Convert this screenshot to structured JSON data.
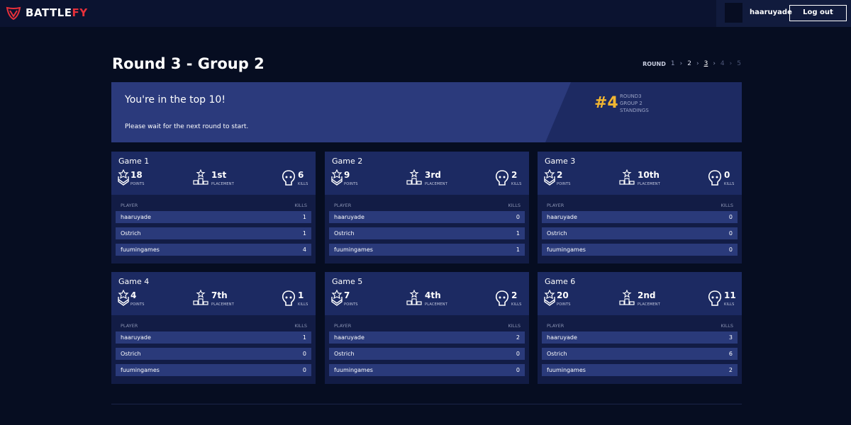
{
  "header": {
    "brand_prefix": "BATTLE",
    "brand_suffix": "FY",
    "username": "haaruyade",
    "logout": "Log out"
  },
  "page": {
    "title": "Round 3 - Group 2",
    "round_label": "ROUND",
    "rounds": [
      "1",
      "2",
      "3",
      "4",
      "5"
    ]
  },
  "banner": {
    "heading": "You're in the top 10!",
    "message": "Please wait for the next round to start.",
    "rank": "#4",
    "rank_lines": [
      "ROUND3",
      "GROUP 2",
      "STANDINGS"
    ]
  },
  "games": [
    {
      "title": "Game 1",
      "points": 18,
      "points_label": "POINTS",
      "placement": "1st",
      "placement_label": "PLACEMENT",
      "kills": 6,
      "kills_label": "KILLS",
      "columns": [
        "PLAYER",
        "KILLS"
      ],
      "rows": [
        [
          "haaruyade",
          1
        ],
        [
          "Ostrich",
          1
        ],
        [
          "fuumingames",
          4
        ]
      ]
    },
    {
      "title": "Game 2",
      "points": 9,
      "points_label": "POINTS",
      "placement": "3rd",
      "placement_label": "PLACEMENT",
      "kills": 2,
      "kills_label": "KILLS",
      "columns": [
        "PLAYER",
        "KILLS"
      ],
      "rows": [
        [
          "haaruyade",
          0
        ],
        [
          "Ostrich",
          1
        ],
        [
          "fuumingames",
          1
        ]
      ]
    },
    {
      "title": "Game 3",
      "points": 2,
      "points_label": "POINTS",
      "placement": "10th",
      "placement_label": "PLACEMENT",
      "kills": 0,
      "kills_label": "KILLS",
      "columns": [
        "PLAYER",
        "KILLS"
      ],
      "rows": [
        [
          "haaruyade",
          0
        ],
        [
          "Ostrich",
          0
        ],
        [
          "fuumingames",
          0
        ]
      ]
    },
    {
      "title": "Game 4",
      "points": 4,
      "points_label": "POINTS",
      "placement": "7th",
      "placement_label": "PLACEMENT",
      "kills": 1,
      "kills_label": "KILLS",
      "columns": [
        "PLAYER",
        "KILLS"
      ],
      "rows": [
        [
          "haaruyade",
          1
        ],
        [
          "Ostrich",
          0
        ],
        [
          "fuumingames",
          0
        ]
      ]
    },
    {
      "title": "Game 5",
      "points": 7,
      "points_label": "POINTS",
      "placement": "4th",
      "placement_label": "PLACEMENT",
      "kills": 2,
      "kills_label": "KILLS",
      "columns": [
        "PLAYER",
        "KILLS"
      ],
      "rows": [
        [
          "haaruyade",
          2
        ],
        [
          "Ostrich",
          0
        ],
        [
          "fuumingames",
          0
        ]
      ]
    },
    {
      "title": "Game 6",
      "points": 20,
      "points_label": "POINTS",
      "placement": "2nd",
      "placement_label": "PLACEMENT",
      "kills": 11,
      "kills_label": "KILLS",
      "columns": [
        "PLAYER",
        "KILLS"
      ],
      "rows": [
        [
          "haaruyade",
          3
        ],
        [
          "Ostrich",
          6
        ],
        [
          "fuumingames",
          2
        ]
      ]
    }
  ]
}
